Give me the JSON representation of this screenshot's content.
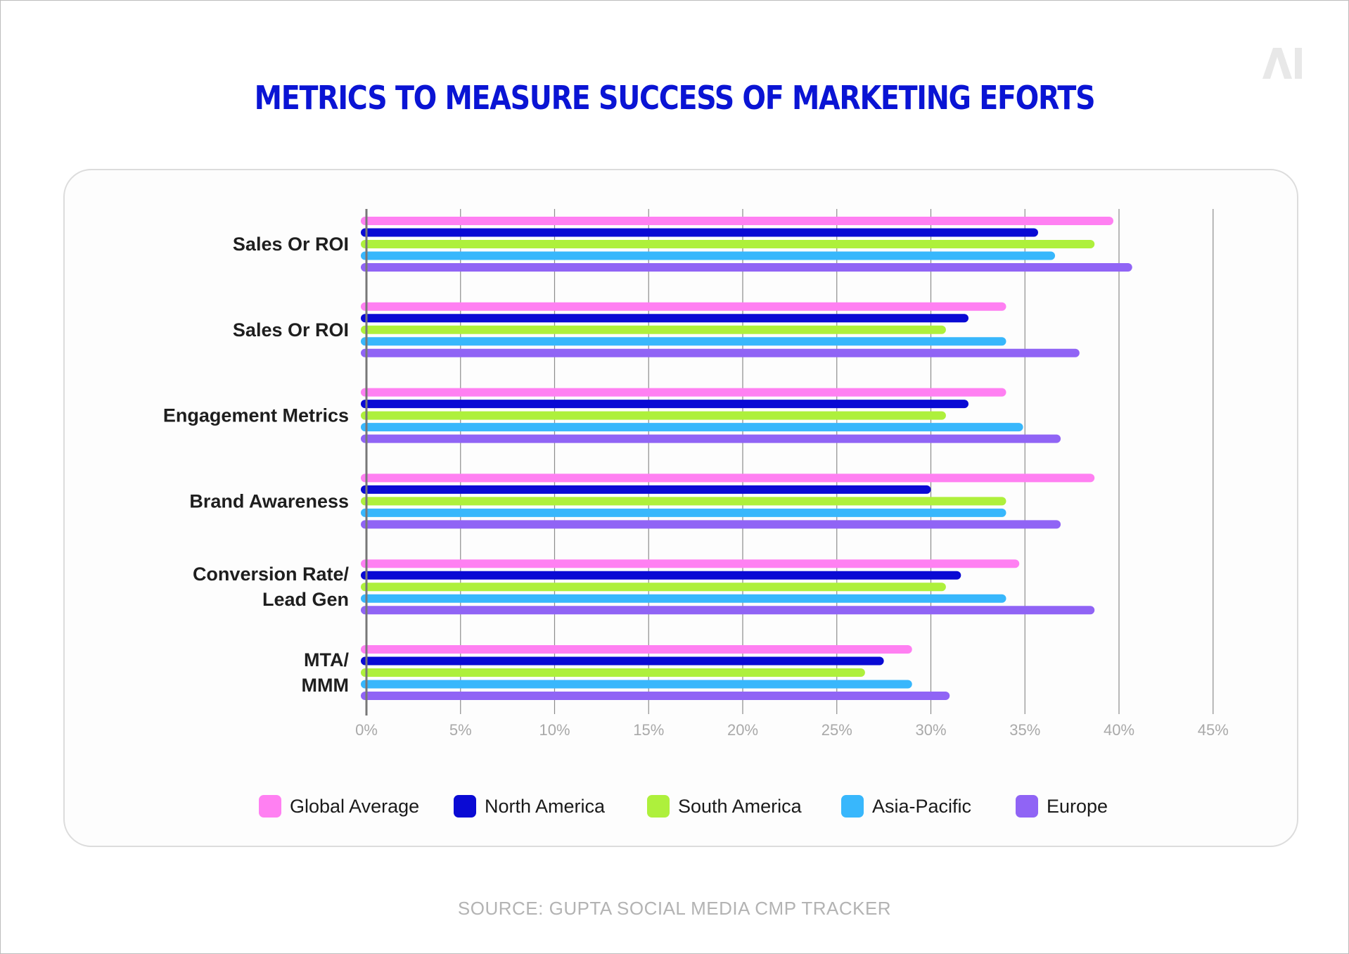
{
  "colors": {
    "title": "#0a14d4",
    "label_text": "#1e1e1e",
    "tick_text": "#a9a9a9",
    "source_text": "#b3b3b3",
    "gridline": "#8c8c8c",
    "axis": "#777777",
    "logo": "#e8e8e8"
  },
  "logo": {
    "text": "AI"
  },
  "source": "SOURCE: GUPTA SOCIAL MEDIA CMP TRACKER",
  "chart_data": {
    "type": "bar",
    "orientation": "horizontal",
    "title": "METRICS TO MEASURE SUCCESS OF MARKETING EFORTS",
    "xlabel": "",
    "ylabel": "",
    "xlim": [
      0,
      45
    ],
    "x_ticks": [
      "0%",
      "5%",
      "10%",
      "15%",
      "20%",
      "25%",
      "30%",
      "35%",
      "40%",
      "45%"
    ],
    "grid": true,
    "legend_position": "bottom",
    "categories": [
      [
        "Sales Or ROI"
      ],
      [
        "Sales Or ROI"
      ],
      [
        "Engagement Metrics"
      ],
      [
        "Brand Awareness"
      ],
      [
        "Conversion Rate/",
        "Lead Gen"
      ],
      [
        "MTA/",
        "MMM"
      ]
    ],
    "series": [
      {
        "name": "Global Average",
        "color": "#ff80f2",
        "values": [
          39.7,
          34.0,
          34.0,
          38.7,
          34.7,
          29.0
        ]
      },
      {
        "name": "North America",
        "color": "#0a0ad4",
        "values": [
          35.7,
          32.0,
          32.0,
          30.0,
          31.6,
          27.5
        ]
      },
      {
        "name": "South America",
        "color": "#aef03c",
        "values": [
          38.7,
          30.8,
          30.8,
          34.0,
          30.8,
          26.5
        ]
      },
      {
        "name": "Asia-Pacific",
        "color": "#38b7fc",
        "values": [
          36.6,
          34.0,
          34.9,
          34.0,
          34.0,
          29.0
        ]
      },
      {
        "name": "Europe",
        "color": "#9064f5",
        "values": [
          40.7,
          37.9,
          36.9,
          36.9,
          38.7,
          31.0
        ]
      }
    ]
  }
}
